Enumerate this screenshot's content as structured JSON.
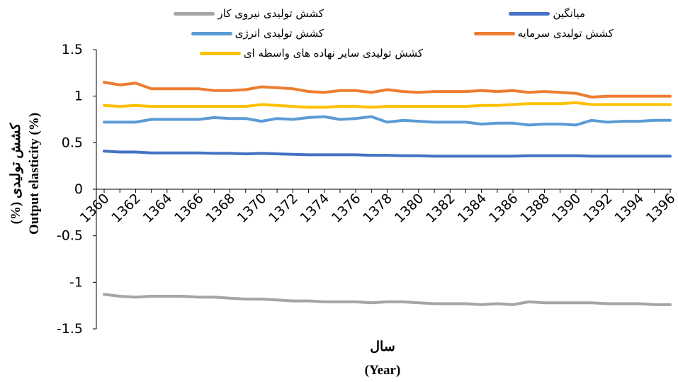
{
  "chart_data": {
    "type": "line",
    "ylabel_fa": "کشش تولیدی (%)",
    "ylabel_en": "Output elasticity (%)",
    "xlabel_fa": "سال",
    "xlabel_en": "(Year)",
    "ylim": [
      -1.5,
      1.5
    ],
    "yticks": [
      "1.5",
      "1",
      "0.5",
      "0",
      "-0.5",
      "-1",
      "-1.5"
    ],
    "x": [
      1360,
      1361,
      1362,
      1363,
      1364,
      1365,
      1366,
      1367,
      1368,
      1369,
      1370,
      1371,
      1372,
      1373,
      1374,
      1375,
      1376,
      1377,
      1378,
      1379,
      1380,
      1381,
      1382,
      1383,
      1384,
      1385,
      1386,
      1387,
      1388,
      1389,
      1390,
      1391,
      1392,
      1393,
      1394,
      1395,
      1396
    ],
    "xtick_labels": [
      "1360",
      "1362",
      "1364",
      "1366",
      "1368",
      "1370",
      "1372",
      "1374",
      "1376",
      "1378",
      "1380",
      "1382",
      "1384",
      "1386",
      "1388",
      "1390",
      "1392",
      "1394",
      "1396"
    ],
    "grid": false,
    "legend_position": "top",
    "series": [
      {
        "name": "میانگین",
        "color": "#4472c4",
        "values": [
          0.41,
          0.4,
          0.4,
          0.39,
          0.39,
          0.39,
          0.39,
          0.385,
          0.385,
          0.38,
          0.385,
          0.38,
          0.375,
          0.37,
          0.37,
          0.37,
          0.37,
          0.365,
          0.365,
          0.36,
          0.36,
          0.355,
          0.355,
          0.355,
          0.355,
          0.355,
          0.355,
          0.36,
          0.36,
          0.36,
          0.36,
          0.355,
          0.355,
          0.355,
          0.355,
          0.355,
          0.355
        ]
      },
      {
        "name": "کشش تولیدی سرمایه",
        "color": "#ed7d31",
        "values": [
          1.15,
          1.12,
          1.14,
          1.08,
          1.08,
          1.08,
          1.08,
          1.06,
          1.06,
          1.07,
          1.1,
          1.09,
          1.08,
          1.05,
          1.04,
          1.06,
          1.06,
          1.04,
          1.07,
          1.05,
          1.04,
          1.05,
          1.05,
          1.05,
          1.06,
          1.05,
          1.06,
          1.04,
          1.05,
          1.04,
          1.03,
          0.99,
          1.0,
          1.0,
          1.0,
          1.0,
          1.0
        ]
      },
      {
        "name": "کشش تولیدی نیروی کار",
        "color": "#a5a5a5",
        "values": [
          -1.13,
          -1.15,
          -1.16,
          -1.15,
          -1.15,
          -1.15,
          -1.16,
          -1.16,
          -1.17,
          -1.18,
          -1.18,
          -1.19,
          -1.2,
          -1.2,
          -1.21,
          -1.21,
          -1.21,
          -1.22,
          -1.21,
          -1.21,
          -1.22,
          -1.23,
          -1.23,
          -1.23,
          -1.24,
          -1.23,
          -1.24,
          -1.21,
          -1.22,
          -1.22,
          -1.22,
          -1.22,
          -1.23,
          -1.23,
          -1.23,
          -1.24,
          -1.24
        ]
      },
      {
        "name": "کشش تولیدی انرژی",
        "color": "#5b9bd5",
        "values": [
          0.72,
          0.72,
          0.72,
          0.75,
          0.75,
          0.75,
          0.75,
          0.77,
          0.76,
          0.76,
          0.73,
          0.76,
          0.75,
          0.77,
          0.78,
          0.75,
          0.76,
          0.78,
          0.72,
          0.74,
          0.73,
          0.72,
          0.72,
          0.72,
          0.7,
          0.71,
          0.71,
          0.69,
          0.7,
          0.7,
          0.69,
          0.74,
          0.72,
          0.73,
          0.73,
          0.74,
          0.74
        ]
      },
      {
        "name": "کشش تولیدی سایر نهاده های واسطه ای",
        "color": "#ffc000",
        "values": [
          0.9,
          0.89,
          0.9,
          0.89,
          0.89,
          0.89,
          0.89,
          0.89,
          0.89,
          0.89,
          0.91,
          0.9,
          0.89,
          0.88,
          0.88,
          0.89,
          0.89,
          0.88,
          0.89,
          0.89,
          0.89,
          0.89,
          0.89,
          0.89,
          0.9,
          0.9,
          0.91,
          0.92,
          0.92,
          0.92,
          0.93,
          0.91,
          0.91,
          0.91,
          0.91,
          0.91,
          0.91
        ]
      }
    ]
  }
}
